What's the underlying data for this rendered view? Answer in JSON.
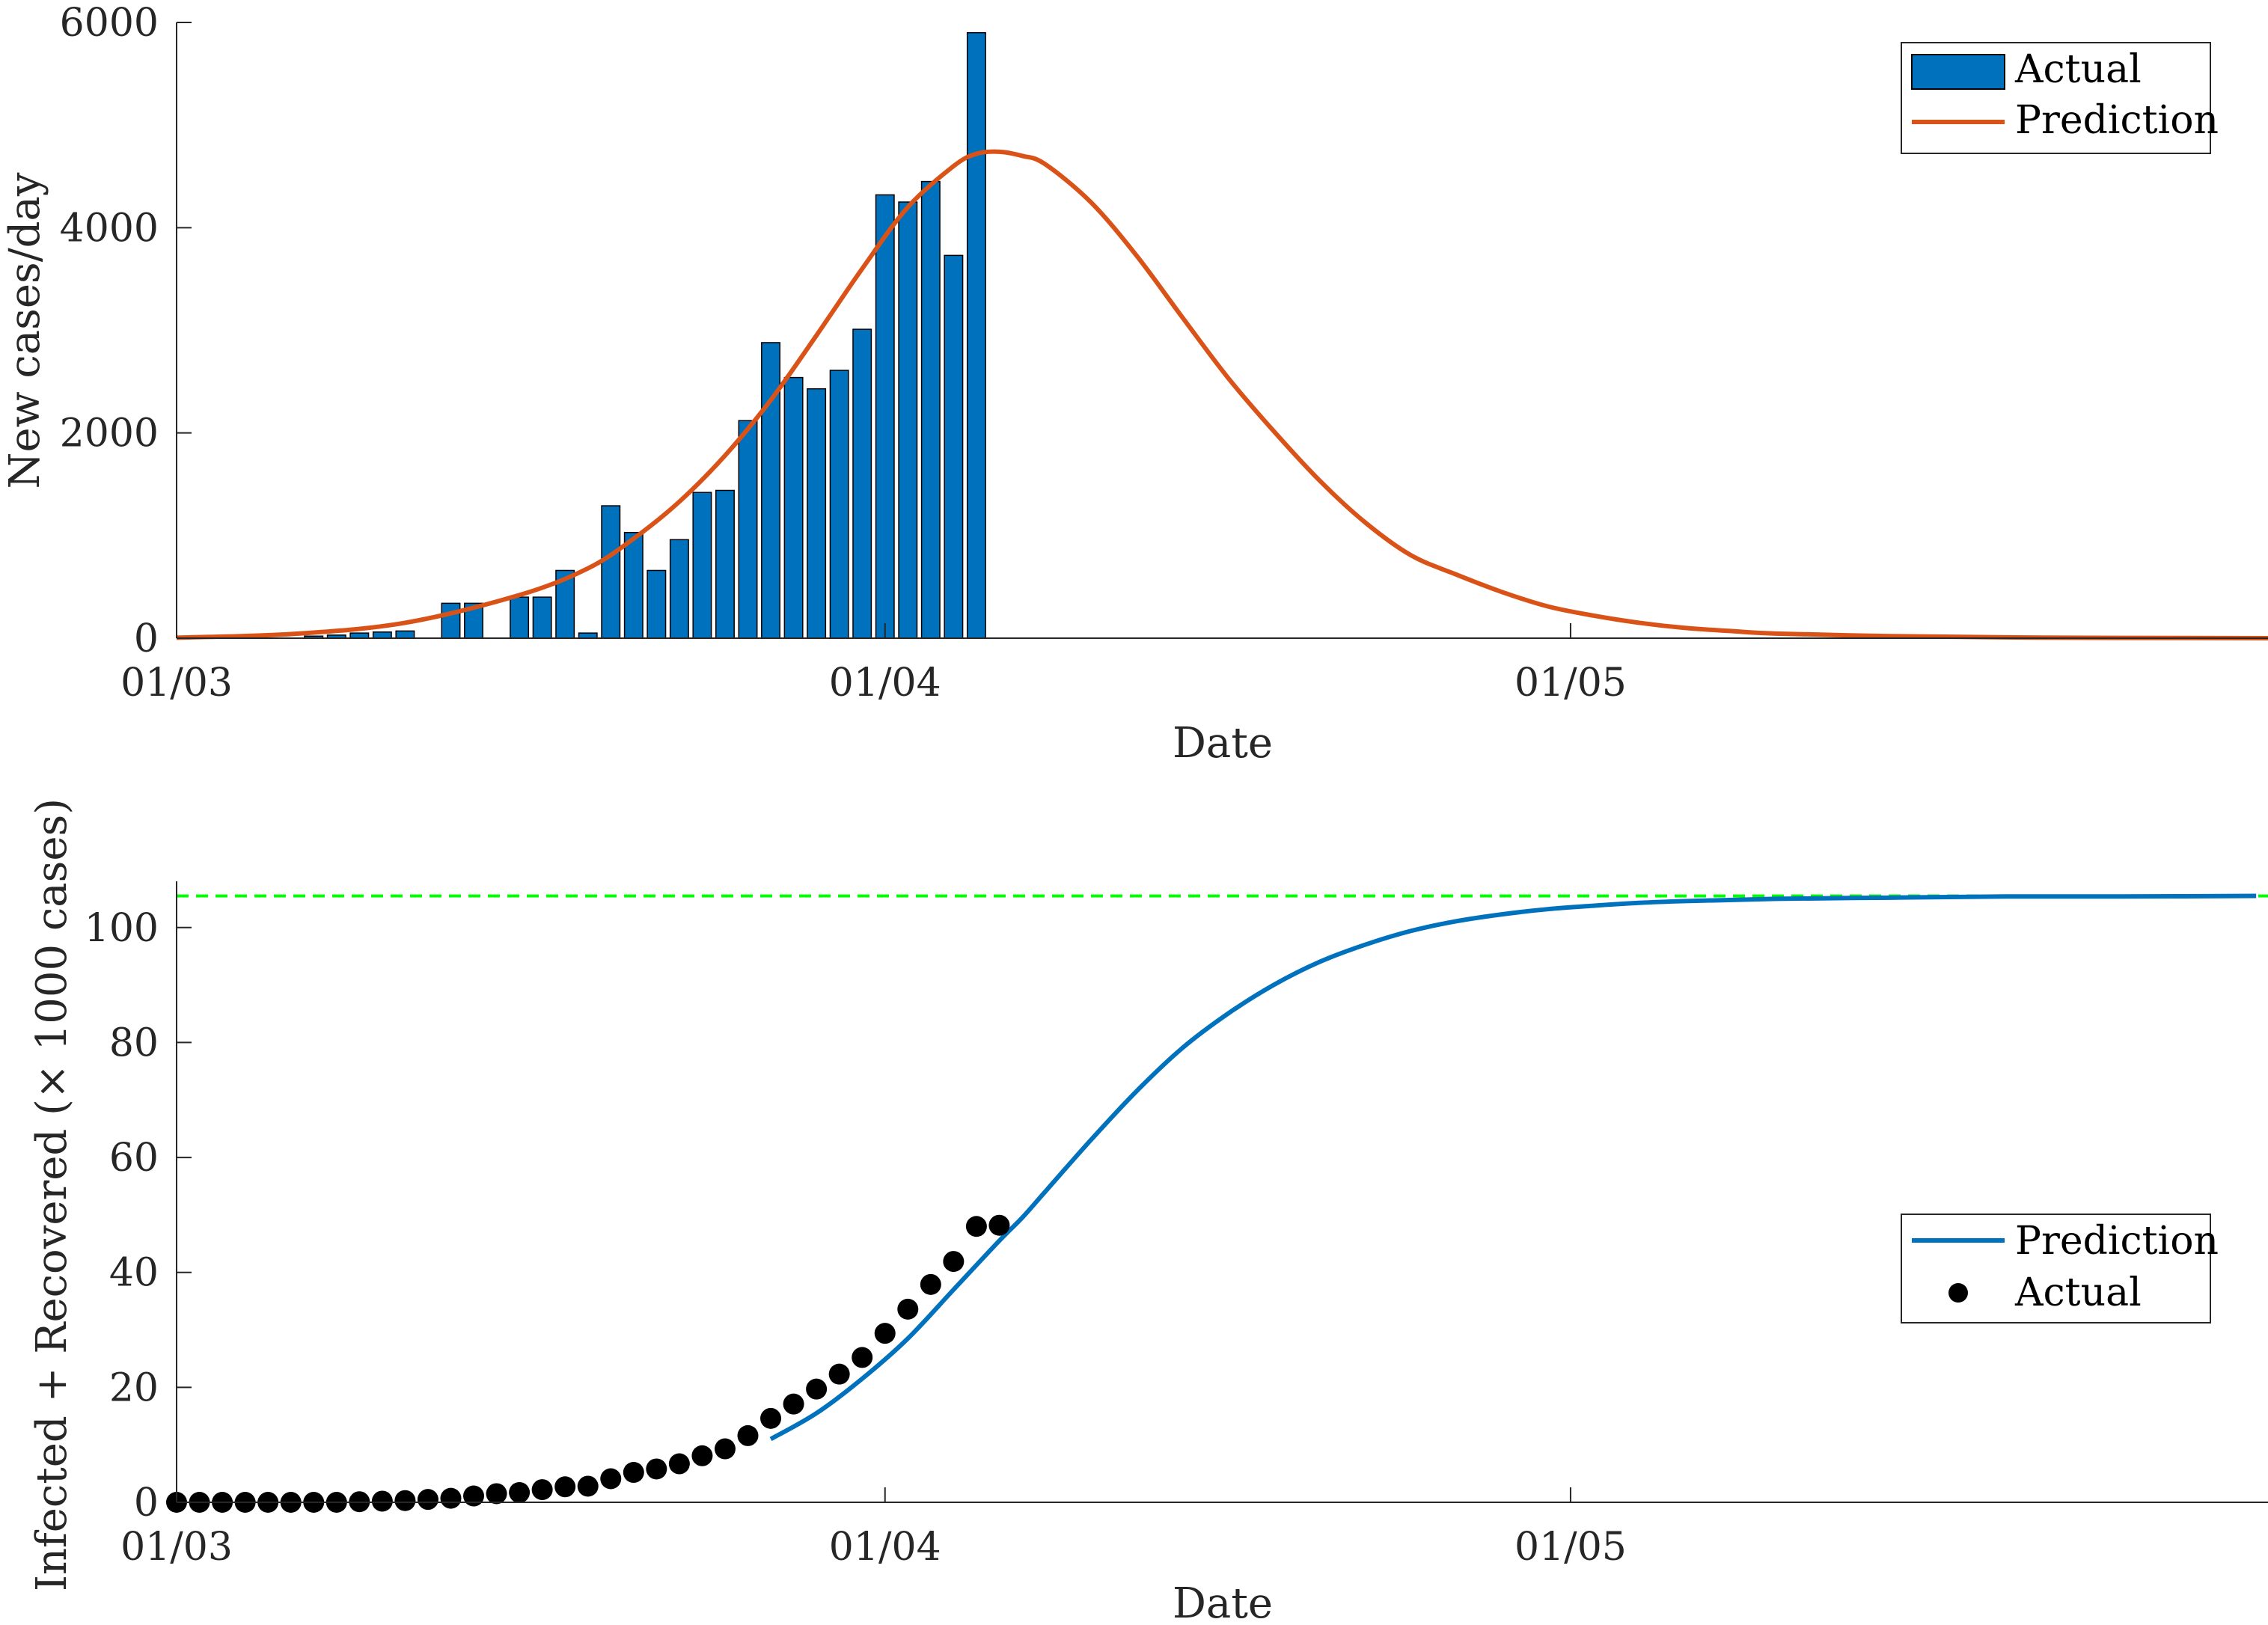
{
  "colors": {
    "bar": "#0072BD",
    "bar_edge": "#000000",
    "prediction_top": "#D95319",
    "prediction_bottom": "#0072BD",
    "actual_dots": "#000000",
    "asymptote": "#00FF00",
    "axis": "#262626"
  },
  "chart_data": [
    {
      "type": "bar",
      "xlabel": "Date",
      "ylabel": "New cases/day",
      "x_ticks": [
        "01/03",
        "01/04",
        "01/05"
      ],
      "x_tick_days": [
        0,
        31,
        61
      ],
      "y_ticks": [
        "0",
        "2000",
        "4000",
        "6000"
      ],
      "y_tick_values": [
        0,
        2000,
        4000,
        6000
      ],
      "xlim_days": [
        0,
        92
      ],
      "ylim": [
        0,
        6000
      ],
      "legend": {
        "position": "top-right",
        "entries": [
          "Actual",
          "Prediction"
        ]
      },
      "bars": {
        "name": "Actual",
        "days": [
          1,
          2,
          3,
          4,
          5,
          6,
          7,
          8,
          9,
          10,
          11,
          12,
          13,
          14,
          15,
          16,
          17,
          18,
          19,
          20,
          21,
          22,
          23,
          24,
          25,
          26,
          27,
          28,
          29,
          30,
          31,
          32,
          33,
          34,
          35
        ],
        "values": [
          0,
          0,
          0,
          0,
          0,
          20,
          30,
          50,
          60,
          70,
          0,
          340,
          340,
          0,
          400,
          400,
          660,
          50,
          1290,
          1030,
          660,
          960,
          1420,
          1440,
          2120,
          2880,
          2540,
          2430,
          2610,
          3010,
          4320,
          4250,
          4450,
          3730,
          5900
        ]
      },
      "prediction": {
        "name": "Prediction",
        "days": [
          0,
          5,
          10,
          15,
          18,
          20,
          22,
          24,
          26,
          28,
          30,
          32,
          34,
          35,
          36,
          37,
          38,
          40,
          42,
          44,
          46,
          48,
          50,
          52,
          54,
          56,
          58,
          60,
          62,
          64,
          66,
          68,
          70,
          75,
          80,
          85,
          92
        ],
        "values": [
          5,
          40,
          150,
          420,
          680,
          970,
          1330,
          1780,
          2320,
          2950,
          3600,
          4200,
          4600,
          4720,
          4740,
          4700,
          4620,
          4250,
          3730,
          3130,
          2540,
          2020,
          1540,
          1130,
          810,
          620,
          450,
          310,
          220,
          150,
          100,
          70,
          45,
          20,
          8,
          3,
          0
        ]
      }
    },
    {
      "type": "line",
      "xlabel": "Date",
      "ylabel": "Infected + Recovered (× 1000 cases)",
      "x_ticks": [
        "01/03",
        "01/04",
        "01/05"
      ],
      "x_tick_days": [
        0,
        31,
        61
      ],
      "y_ticks": [
        "0",
        "20",
        "40",
        "60",
        "80",
        "100"
      ],
      "y_tick_values": [
        0,
        20,
        40,
        60,
        80,
        100
      ],
      "xlim_days": [
        0,
        91
      ],
      "ylim": [
        0,
        107
      ],
      "legend": {
        "position": "center-right",
        "entries": [
          "Prediction",
          "Actual"
        ]
      },
      "asymptote": 105.5,
      "prediction": {
        "name": "Prediction",
        "days": [
          26,
          28,
          30,
          32,
          34,
          36,
          37,
          38,
          40,
          42,
          44,
          46,
          48,
          50,
          52,
          54,
          56,
          58,
          60,
          62,
          64,
          66,
          70,
          75,
          80,
          85,
          91
        ],
        "values": [
          11,
          15.5,
          21.5,
          28.5,
          37,
          45.5,
          49.5,
          54,
          63,
          71.5,
          79,
          85,
          90,
          94,
          97,
          99.4,
          101.1,
          102.3,
          103.2,
          103.8,
          104.3,
          104.6,
          105,
          105.2,
          105.4,
          105.4,
          105.5
        ]
      },
      "actual": {
        "name": "Actual",
        "days": [
          0,
          1,
          2,
          3,
          4,
          5,
          6,
          7,
          8,
          9,
          10,
          11,
          12,
          13,
          14,
          15,
          16,
          17,
          18,
          19,
          20,
          21,
          22,
          23,
          24,
          25,
          26,
          27,
          28,
          29,
          30,
          31,
          32,
          33,
          34,
          35,
          36
        ],
        "values": [
          0,
          0,
          0,
          0,
          0,
          0,
          0,
          0,
          0.1,
          0.2,
          0.3,
          0.5,
          0.7,
          1.1,
          1.5,
          1.7,
          2.2,
          2.7,
          2.8,
          4.1,
          5.2,
          5.8,
          6.7,
          8.1,
          9.3,
          11.6,
          14.6,
          17.1,
          19.7,
          22.3,
          25.2,
          29.4,
          33.6,
          37.9,
          41.9,
          48,
          48.2
        ]
      }
    }
  ]
}
